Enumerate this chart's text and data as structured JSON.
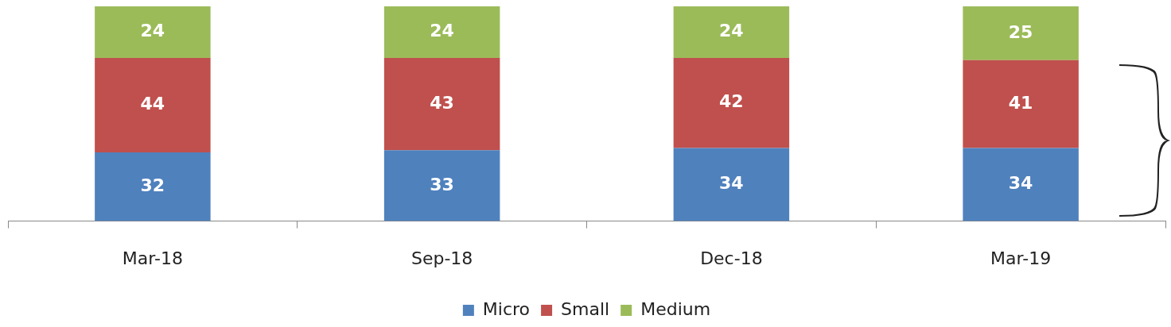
{
  "chart_data": {
    "type": "bar",
    "stacked": true,
    "data_labels": true,
    "legend": "bottom",
    "grid": false,
    "categories": [
      "Mar-18",
      "Sep-18",
      "Dec-18",
      "Mar-19"
    ],
    "series": [
      {
        "name": "Micro",
        "color": "#4f81bd",
        "values": [
          32,
          33,
          34,
          34
        ]
      },
      {
        "name": "Small",
        "color": "#c0504d",
        "values": [
          44,
          43,
          42,
          41
        ]
      },
      {
        "name": "Medium",
        "color": "#9bbb59",
        "values": [
          24,
          24,
          24,
          25
        ]
      }
    ]
  }
}
